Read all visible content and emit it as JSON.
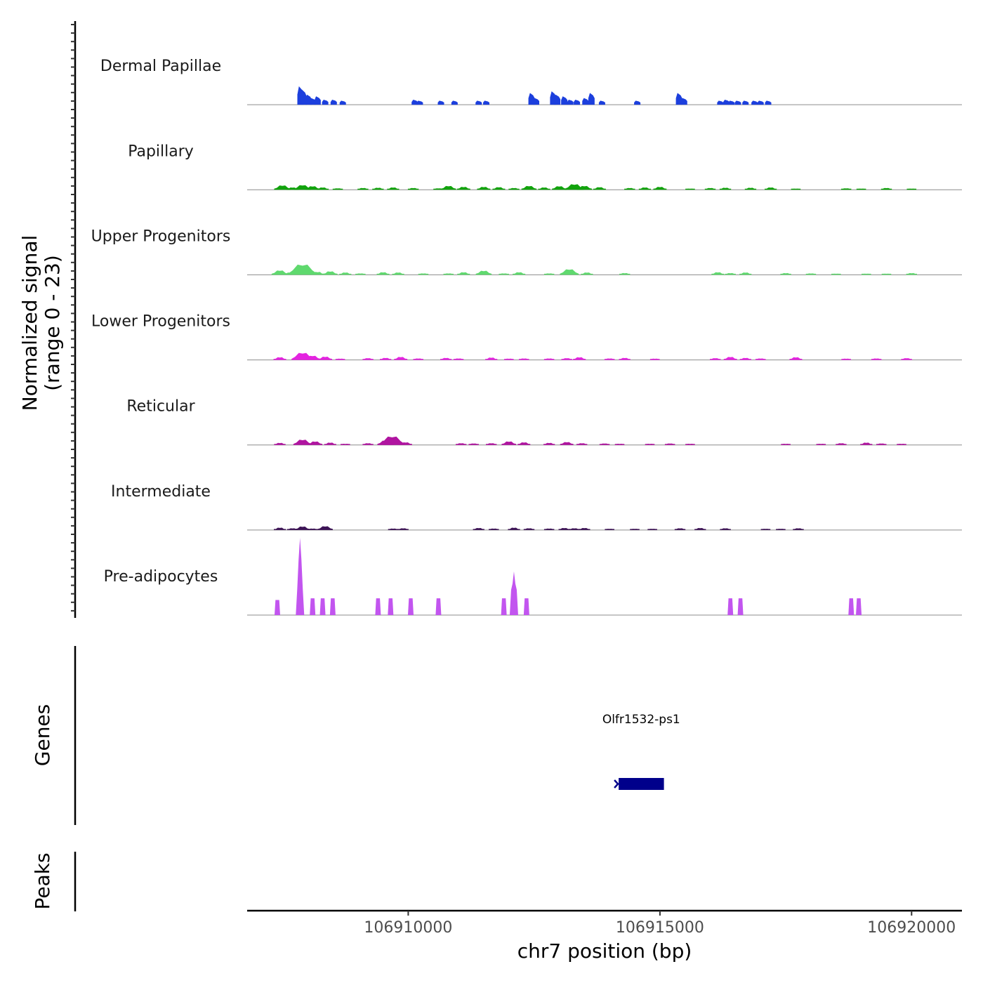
{
  "chart_data": {
    "type": "area",
    "region": {
      "chromosome": "chr7",
      "start": 106906800,
      "end": 106921000
    },
    "signal_panel": {
      "ylabel_line1": "Normalized signal",
      "ylabel_line2": "(range 0 - 23)",
      "range": [
        0,
        23
      ],
      "tracks": [
        {
          "name": "Dermal Papillae",
          "color": "#1c3fdd",
          "mode": "blocks",
          "peaks": [
            [
              106907860,
              5.5
            ],
            [
              106907920,
              4.5
            ],
            [
              106908020,
              3
            ],
            [
              106908100,
              2
            ],
            [
              106908200,
              2.5
            ],
            [
              106908350,
              1.5
            ],
            [
              106908520,
              1.5
            ],
            [
              106908700,
              1.2
            ],
            [
              106910130,
              1.5
            ],
            [
              106910230,
              1.2
            ],
            [
              106910650,
              1.2
            ],
            [
              106910920,
              1.2
            ],
            [
              106911400,
              1.2
            ],
            [
              106911550,
              1.2
            ],
            [
              106912450,
              3.5
            ],
            [
              106912540,
              2
            ],
            [
              106912880,
              4
            ],
            [
              106912960,
              3
            ],
            [
              106913100,
              2.5
            ],
            [
              106913220,
              1.5
            ],
            [
              106913350,
              1.5
            ],
            [
              106913520,
              2
            ],
            [
              106913640,
              3.5
            ],
            [
              106913850,
              1.2
            ],
            [
              106914550,
              1.2
            ],
            [
              106915380,
              3.5
            ],
            [
              106915480,
              2
            ],
            [
              106916200,
              1.2
            ],
            [
              106916320,
              1.5
            ],
            [
              106916420,
              1.2
            ],
            [
              106916550,
              1.2
            ],
            [
              106916700,
              1.2
            ],
            [
              106916880,
              1.2
            ],
            [
              106917000,
              1.2
            ],
            [
              106917150,
              1.2
            ]
          ]
        },
        {
          "name": "Papillary",
          "color": "#11a30c",
          "mode": "smooth",
          "peaks": [
            [
              106907500,
              1.5
            ],
            [
              106907700,
              0.8
            ],
            [
              106907900,
              1.6
            ],
            [
              106908100,
              1.2
            ],
            [
              106908300,
              0.8
            ],
            [
              106908600,
              0.5
            ],
            [
              106909100,
              0.6
            ],
            [
              106909400,
              0.7
            ],
            [
              106909700,
              0.8
            ],
            [
              106910100,
              0.6
            ],
            [
              106910600,
              0.5
            ],
            [
              106910800,
              1.3
            ],
            [
              106911100,
              1.0
            ],
            [
              106911500,
              1.0
            ],
            [
              106911800,
              0.9
            ],
            [
              106912100,
              0.6
            ],
            [
              106912400,
              1.3
            ],
            [
              106912700,
              0.8
            ],
            [
              106913000,
              1.2
            ],
            [
              106913300,
              1.9
            ],
            [
              106913500,
              1.3
            ],
            [
              106913800,
              0.9
            ],
            [
              106914400,
              0.6
            ],
            [
              106914700,
              0.8
            ],
            [
              106915000,
              1.0
            ],
            [
              106915600,
              0.4
            ],
            [
              106916000,
              0.6
            ],
            [
              106916300,
              0.7
            ],
            [
              106916800,
              0.7
            ],
            [
              106917200,
              0.8
            ],
            [
              106917700,
              0.4
            ],
            [
              106918700,
              0.5
            ],
            [
              106919000,
              0.4
            ],
            [
              106919500,
              0.6
            ],
            [
              106920000,
              0.4
            ]
          ]
        },
        {
          "name": "Upper Progenitors",
          "color": "#5fd96e",
          "mode": "smooth",
          "peaks": [
            [
              106907450,
              1.5
            ],
            [
              106907650,
              0.8
            ],
            [
              106907900,
              3.5
            ],
            [
              106908200,
              1.0
            ],
            [
              106908450,
              1.2
            ],
            [
              106908750,
              0.8
            ],
            [
              106909050,
              0.5
            ],
            [
              106909500,
              0.9
            ],
            [
              106909800,
              0.8
            ],
            [
              106910300,
              0.5
            ],
            [
              106910800,
              0.5
            ],
            [
              106911100,
              0.9
            ],
            [
              106911500,
              1.4
            ],
            [
              106911900,
              0.5
            ],
            [
              106912200,
              0.9
            ],
            [
              106912800,
              0.5
            ],
            [
              106913200,
              1.9
            ],
            [
              106913550,
              0.8
            ],
            [
              106914300,
              0.6
            ],
            [
              106916150,
              0.9
            ],
            [
              106916400,
              0.6
            ],
            [
              106916700,
              0.8
            ],
            [
              106917500,
              0.6
            ],
            [
              106918000,
              0.5
            ],
            [
              106918500,
              0.4
            ],
            [
              106919100,
              0.4
            ],
            [
              106919500,
              0.4
            ],
            [
              106920000,
              0.6
            ]
          ]
        },
        {
          "name": "Lower Progenitors",
          "color": "#e423e0",
          "mode": "smooth",
          "peaks": [
            [
              106907450,
              0.9
            ],
            [
              106907900,
              2.4
            ],
            [
              106908100,
              1.4
            ],
            [
              106908350,
              1.1
            ],
            [
              106908650,
              0.4
            ],
            [
              106909200,
              0.6
            ],
            [
              106909550,
              0.7
            ],
            [
              106909850,
              1.0
            ],
            [
              106910200,
              0.5
            ],
            [
              106910750,
              0.7
            ],
            [
              106911000,
              0.5
            ],
            [
              106911650,
              0.8
            ],
            [
              106912000,
              0.4
            ],
            [
              106912300,
              0.5
            ],
            [
              106912800,
              0.5
            ],
            [
              106913150,
              0.6
            ],
            [
              106913400,
              0.9
            ],
            [
              106914000,
              0.5
            ],
            [
              106914300,
              0.7
            ],
            [
              106914900,
              0.4
            ],
            [
              106916100,
              0.6
            ],
            [
              106916400,
              1.0
            ],
            [
              106916700,
              0.7
            ],
            [
              106917000,
              0.5
            ],
            [
              106917700,
              0.9
            ],
            [
              106918700,
              0.4
            ],
            [
              106919300,
              0.5
            ],
            [
              106919900,
              0.6
            ]
          ]
        },
        {
          "name": "Reticular",
          "color": "#b014a0",
          "mode": "smooth",
          "peaks": [
            [
              106907450,
              0.7
            ],
            [
              106907900,
              1.8
            ],
            [
              106908150,
              1.2
            ],
            [
              106908450,
              0.8
            ],
            [
              106908750,
              0.4
            ],
            [
              106909200,
              0.6
            ],
            [
              106909550,
              1.5
            ],
            [
              106909680,
              2.9
            ],
            [
              106909950,
              0.9
            ],
            [
              106911050,
              0.6
            ],
            [
              106911300,
              0.5
            ],
            [
              106911650,
              0.6
            ],
            [
              106912000,
              1.2
            ],
            [
              106912300,
              0.9
            ],
            [
              106912800,
              0.7
            ],
            [
              106913150,
              1.0
            ],
            [
              106913450,
              0.6
            ],
            [
              106913900,
              0.5
            ],
            [
              106914200,
              0.4
            ],
            [
              106914800,
              0.4
            ],
            [
              106915200,
              0.5
            ],
            [
              106915600,
              0.4
            ],
            [
              106917500,
              0.4
            ],
            [
              106918200,
              0.4
            ],
            [
              106918600,
              0.6
            ],
            [
              106919100,
              0.8
            ],
            [
              106919400,
              0.5
            ],
            [
              106919800,
              0.4
            ]
          ]
        },
        {
          "name": "Intermediate",
          "color": "#3d1356",
          "mode": "smooth",
          "peaks": [
            [
              106907450,
              0.8
            ],
            [
              106907700,
              0.6
            ],
            [
              106907900,
              1.2
            ],
            [
              106908100,
              0.5
            ],
            [
              106908350,
              1.3
            ],
            [
              106909700,
              0.5
            ],
            [
              106909900,
              0.6
            ],
            [
              106911400,
              0.7
            ],
            [
              106911700,
              0.5
            ],
            [
              106912100,
              0.8
            ],
            [
              106912400,
              0.6
            ],
            [
              106912800,
              0.5
            ],
            [
              106913100,
              0.7
            ],
            [
              106913300,
              0.6
            ],
            [
              106913500,
              0.7
            ],
            [
              106914000,
              0.4
            ],
            [
              106914500,
              0.4
            ],
            [
              106914850,
              0.4
            ],
            [
              106915400,
              0.6
            ],
            [
              106915800,
              0.7
            ],
            [
              106916300,
              0.6
            ],
            [
              106917100,
              0.4
            ],
            [
              106917400,
              0.4
            ],
            [
              106917750,
              0.6
            ]
          ]
        },
        {
          "name": "Pre-adipocytes",
          "color": "#c255ef",
          "mode": "spikes",
          "peaks": [
            [
              106907400,
              4.5
            ],
            [
              106907850,
              23
            ],
            [
              106908100,
              5
            ],
            [
              106908300,
              5
            ],
            [
              106908500,
              5
            ],
            [
              106909400,
              5
            ],
            [
              106909650,
              5
            ],
            [
              106910050,
              5
            ],
            [
              106910600,
              5
            ],
            [
              106911900,
              5
            ],
            [
              106912100,
              13
            ],
            [
              106912350,
              5
            ],
            [
              106916400,
              5
            ],
            [
              106916600,
              5
            ],
            [
              106918800,
              5
            ],
            [
              106918950,
              5
            ]
          ]
        }
      ]
    },
    "genes_panel": {
      "ylabel": "Genes",
      "genes": [
        {
          "name": "Olfr1532-ps1",
          "start": 106914180,
          "end": 106915080,
          "strand": "-"
        }
      ]
    },
    "peaks_panel": {
      "ylabel": "Peaks",
      "peaks": []
    },
    "x_axis": {
      "title": "chr7 position (bp)",
      "ticks": [
        106910000,
        106915000,
        106920000
      ],
      "tick_labels": [
        "106910000",
        "106915000",
        "106920000"
      ]
    }
  }
}
